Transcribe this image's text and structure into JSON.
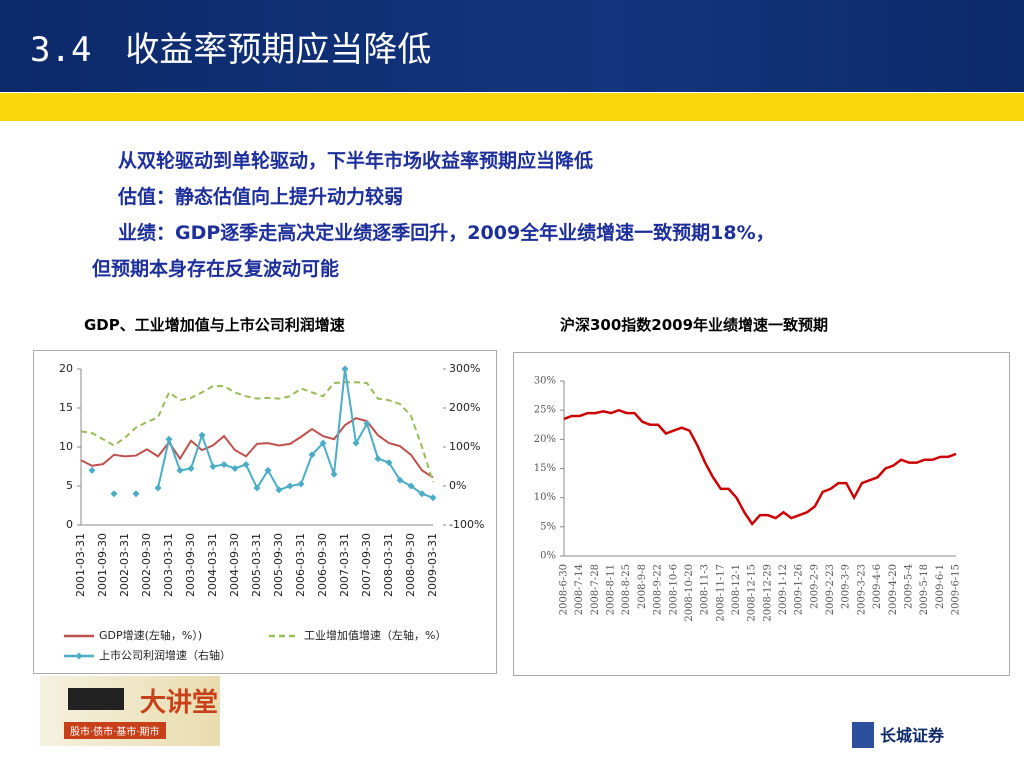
{
  "header": {
    "title": "3.4　收益率预期应当降低"
  },
  "body": {
    "lines": [
      "从双轮驱动到单轮驱动，下半年市场收益率预期应当降低",
      "估值：静态估值向上提升动力较弱",
      "业绩：GDP逐季走高决定业绩逐季回升，2009全年业绩增速一致预期18%，",
      "但预期本身存在反复波动可能"
    ]
  },
  "footer": {
    "left_logo": "大讲堂",
    "left_logo_tagline": "股市·债市·基市·期市",
    "right_logo": "长城证券"
  },
  "chart_data": [
    {
      "type": "line",
      "title": "GDP、工业增加值与上市公司利润增速",
      "categories": [
        "2001-03-31",
        null,
        "2001-09-30",
        null,
        "2002-03-31",
        null,
        "2002-09-30",
        null,
        "2003-03-31",
        null,
        "2003-09-30",
        null,
        "2004-03-31",
        null,
        "2004-09-30",
        null,
        "2005-03-31",
        null,
        "2005-09-30",
        null,
        "2006-03-31",
        null,
        "2006-09-30",
        null,
        "2007-03-31",
        null,
        "2007-09-30",
        null,
        "2008-03-31",
        null,
        "2008-09-30",
        null,
        "2009-03-31"
      ],
      "series": [
        {
          "name": "GDP增速(左轴，%）)",
          "color": "#c0504d",
          "axis": "y",
          "style": "solid",
          "values": [
            8.3,
            7.6,
            7.8,
            9.0,
            8.8,
            8.9,
            9.7,
            8.8,
            10.6,
            8.5,
            10.8,
            9.6,
            10.2,
            11.4,
            9.6,
            8.8,
            10.4,
            10.5,
            10.2,
            10.4,
            11.3,
            12.3,
            11.4,
            11.0,
            12.8,
            13.7,
            13.3,
            11.5,
            10.5,
            10.1,
            9.0,
            7.0,
            6.1
          ]
        },
        {
          "name": "工业增加值增速（左轴，%）",
          "color": "#9bbb59",
          "axis": "y",
          "style": "dashed",
          "values": [
            12.0,
            11.8,
            11.0,
            10.2,
            11.2,
            12.5,
            13.2,
            13.8,
            17.0,
            16.0,
            16.3,
            17.0,
            17.8,
            17.8,
            17.0,
            16.5,
            16.2,
            16.3,
            16.2,
            16.5,
            17.5,
            17.0,
            16.5,
            18.2,
            18.3,
            18.3,
            18.2,
            16.2,
            16.0,
            15.5,
            14.0,
            10.0,
            5.5
          ]
        },
        {
          "name": "上市公司利润增速（右轴）",
          "color": "#4bacc6",
          "axis": "y2",
          "style": "marker",
          "values": [
            null,
            40,
            null,
            -20,
            null,
            -20,
            null,
            -5,
            120,
            40,
            45,
            130,
            50,
            55,
            45,
            55,
            -5,
            40,
            -10,
            0,
            5,
            80,
            110,
            30,
            300,
            110,
            160,
            70,
            60,
            15,
            0,
            -20,
            -30
          ]
        }
      ],
      "ylim": [
        0,
        20
      ],
      "yticks": [
        0,
        5,
        10,
        15,
        20
      ],
      "y2lim": [
        -100,
        300
      ],
      "y2ticks": [
        {
          "value": -100,
          "label": "-100%"
        },
        {
          "value": 0,
          "label": "0%"
        },
        {
          "value": 100,
          "label": "100%"
        },
        {
          "value": 200,
          "label": "200%"
        },
        {
          "value": 300,
          "label": "300%"
        }
      ],
      "legend": "bottom"
    },
    {
      "type": "line",
      "title": "沪深300指数2009年业绩增速一致预期",
      "color": "#cc0000",
      "categories": [
        "2008-6-30",
        null,
        "2008-7-14",
        null,
        "2008-7-28",
        null,
        "2008-8-11",
        null,
        "2008-8-25",
        null,
        "2008-9-8",
        null,
        "2008-9-22",
        null,
        "2008-10-6",
        null,
        "2008-10-20",
        null,
        "2008-11-3",
        null,
        "2008-11-17",
        null,
        "2008-12-1",
        null,
        "2008-12-15",
        null,
        "2008-12-29",
        null,
        "2009-1-12",
        null,
        "2009-1-26",
        null,
        "2009-2-9",
        null,
        "2009-2-23",
        null,
        "2009-3-9",
        null,
        "2009-3-23",
        null,
        "2009-4-6",
        null,
        "2009-4-20",
        null,
        "2009-5-4",
        null,
        "2009-5-18",
        null,
        "2009-6-1",
        null,
        "2009-6-15"
      ],
      "values": [
        23.5,
        24,
        24,
        24.5,
        24.5,
        24.8,
        24.5,
        25,
        24.5,
        24.5,
        23,
        22.5,
        22.5,
        21,
        21.5,
        22,
        21.5,
        19,
        16,
        13.5,
        11.5,
        11.5,
        10,
        7.5,
        5.5,
        7,
        7,
        6.5,
        7.5,
        6.5,
        7,
        7.5,
        8.5,
        11,
        11.5,
        12.5,
        12.5,
        10,
        12.5,
        13,
        13.5,
        15,
        15.5,
        16.5,
        16,
        16,
        16.5,
        16.5,
        17,
        17,
        17.5
      ],
      "ylim": [
        0,
        30
      ],
      "yticks": [
        {
          "value": 0,
          "label": "0%"
        },
        {
          "value": 5,
          "label": "5%"
        },
        {
          "value": 10,
          "label": "10%"
        },
        {
          "value": 15,
          "label": "15%"
        },
        {
          "value": 20,
          "label": "20%"
        },
        {
          "value": 25,
          "label": "25%"
        },
        {
          "value": 30,
          "label": "30%"
        }
      ]
    }
  ]
}
